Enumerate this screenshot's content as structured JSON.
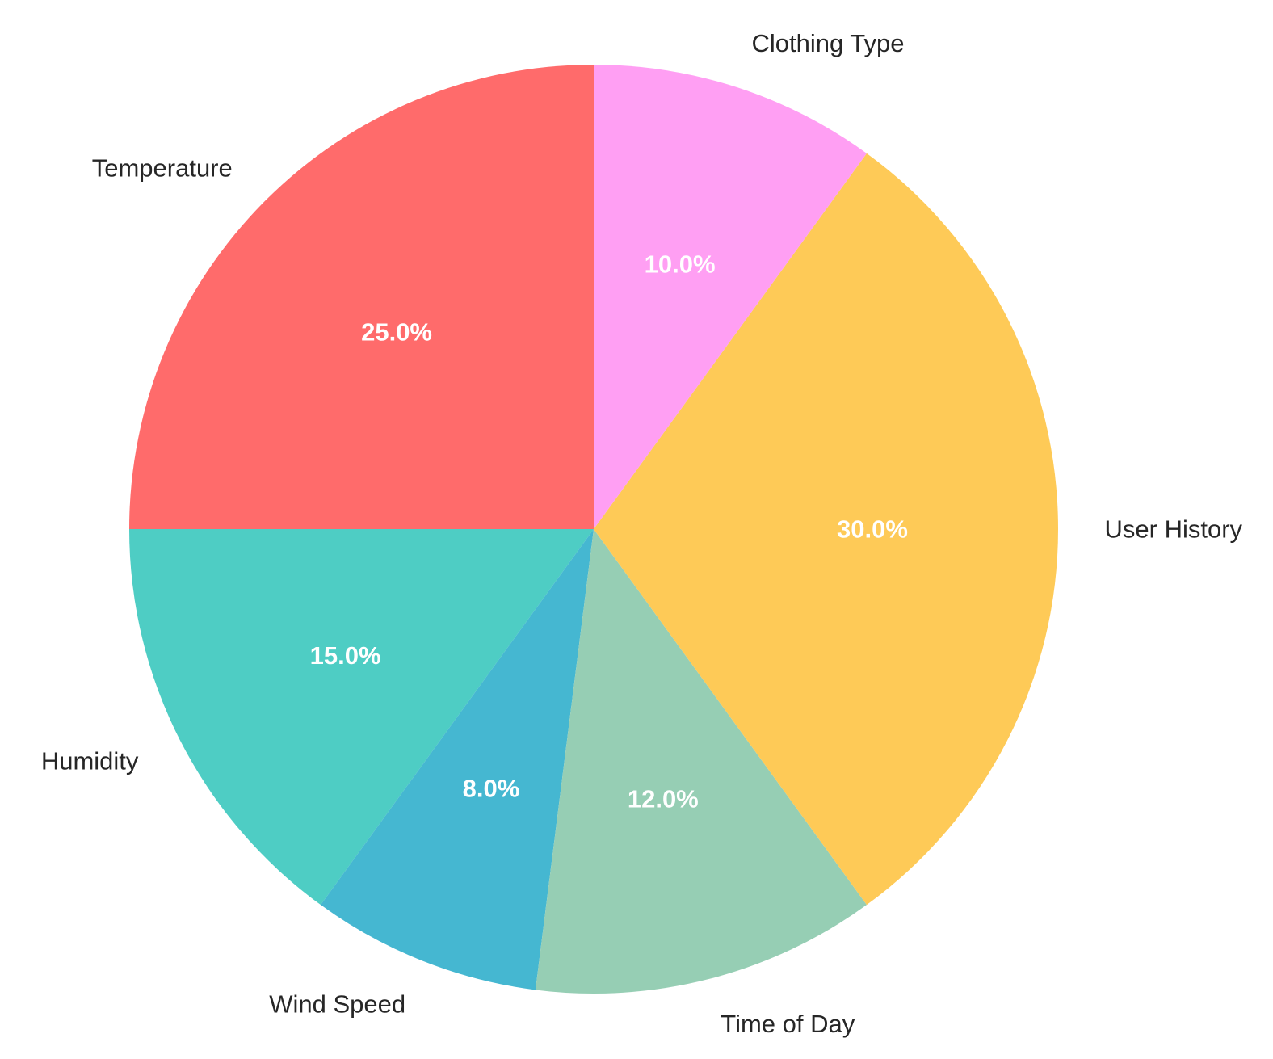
{
  "chart_data": {
    "type": "pie",
    "categories": [
      "Temperature",
      "Humidity",
      "Wind Speed",
      "Time of Day",
      "User History",
      "Clothing Type"
    ],
    "values": [
      25.0,
      15.0,
      8.0,
      12.0,
      30.0,
      10.0
    ],
    "value_labels": [
      "25.0%",
      "15.0%",
      "8.0%",
      "12.0%",
      "30.0%",
      "10.0%"
    ],
    "colors": [
      "#FF6B6B",
      "#4ECDC4",
      "#45B7D1",
      "#96CEB4",
      "#FECA57",
      "#FF9FF3"
    ],
    "start_angle_degrees": 90,
    "direction": "counterclockwise",
    "title": "",
    "legend": "none"
  }
}
